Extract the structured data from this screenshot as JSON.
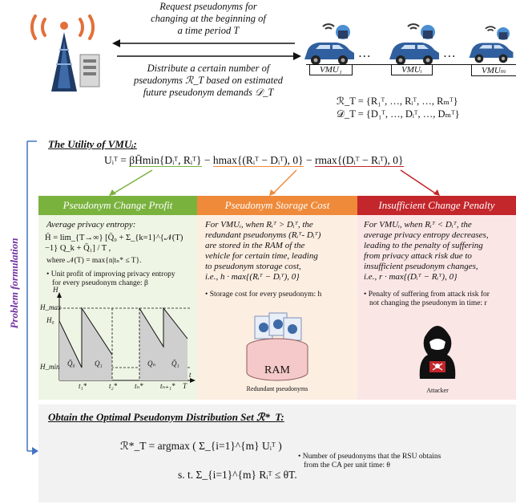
{
  "top": {
    "request_msg": [
      "Request pseudonyms for",
      "changing at the beginning of",
      "a time period T"
    ],
    "distribute_msg": [
      "Distribute a certain number of",
      "pseudonyms ℛ_T based on estimated",
      "future pseudonym demands 𝒟_T"
    ],
    "vmu_labels": [
      "VMU₁",
      "VMUᵢ",
      "VMUₘ"
    ],
    "dots": "…",
    "set_r": "ℛ_T = {R₁ᵀ, …, Rᵢᵀ, …, Rₘᵀ}",
    "set_d": "𝒟_T = {D₁ᵀ, …, Dᵢᵀ, …, Dₘᵀ}"
  },
  "side_label": "Problem formulation",
  "utility": {
    "heading": "The Utility of VMUᵢ:",
    "formula_lhs": "Uᵢᵀ = ",
    "term1": "βH̄min{Dᵢᵀ, Rᵢᵀ}",
    "minus1": " − ",
    "term2": "hmax{(Rᵢᵀ − Dᵢᵀ), 0}",
    "minus2": " − ",
    "term3": "rmax{(Dᵢᵀ − Rᵢᵀ), 0}"
  },
  "columns": {
    "profit": {
      "title": "Pseudonym Change Profit",
      "subtitle": "Average privacy entropy:",
      "formula": "H̄ = lim_{T→∞} [Q̄₀ + Σ_{k=1}^{𝒩(T)−1} Q_k + Q̄₁] / T ,",
      "where": "where 𝒩(T) = max{n|tₙ* ≤ T}.",
      "bullet": [
        "Unit profit of improving privacy entropy",
        "for every pseudonym change: β"
      ],
      "graph": {
        "y_axis": "H",
        "x_axis": "t",
        "y_ticks": [
          "H_max",
          "H₀",
          "H_min"
        ],
        "x_ticks": [
          "t₁*",
          "t₂*",
          "tₙ*",
          "tₙ₊₁*",
          "T"
        ],
        "areas": [
          "Q̄₀",
          "Q₁",
          "Qₙ",
          "Q̄₁"
        ]
      }
    },
    "storage": {
      "title": "Pseudonym Storage Cost",
      "text": [
        "For VMUᵢ, when Rᵢᵀ > Dᵢᵀ, the",
        "redundant pseudonyms (Rᵢᵀ- Dᵢᵀ)",
        "are stored in the RAM of the",
        "vehicle for certain time, leading",
        "to pseudonym storage cost,",
        "i.e., h · max{(Rᵢᵀ − Dᵢᵀ), 0}"
      ],
      "bullet": "Storage cost for every pseudonym: h",
      "ram_label": "RAM",
      "ram_caption": "Redundant pseudonyms"
    },
    "penalty": {
      "title": "Insufficient Change Penalty",
      "text": [
        "For VMUᵢ, when Rᵢᵀ < Dᵢᵀ, the",
        "average privacy entropy decreases,",
        "leading to the penalty of suffering",
        "from privacy attack risk due to",
        "insufficient pseudonym changes,",
        "i.e., r · max{(Dᵢᵀ − Rᵢᵀ), 0}"
      ],
      "bullet": [
        "Penalty of suffering from attack risk for",
        "not changing the pseudonym in time: r"
      ],
      "attacker_caption": "Attacker"
    }
  },
  "optimal": {
    "heading": "Obtain the Optimal Pseudonym Distribution Set ℛ*_T:",
    "formula1": "ℛ*_T = argmax ( Σ_{i=1}^{m} Uᵢᵀ )",
    "formula2": "s. t. Σ_{i=1}^{m} Rᵢᵀ ≤ θT.",
    "note": [
      "Number of pseudonyms that the RSU obtains",
      "from the CA per unit time: θ"
    ]
  },
  "colors": {
    "green": "#7ab23e",
    "green_bg": "#eef5e4",
    "orange": "#ee8a3a",
    "orange_bg": "#fdeee2",
    "red": "#c3262b",
    "red_bg": "#fbe6e6",
    "side": "#7030a0",
    "bracket": "#4472c4",
    "car": "#2f5f9e"
  }
}
